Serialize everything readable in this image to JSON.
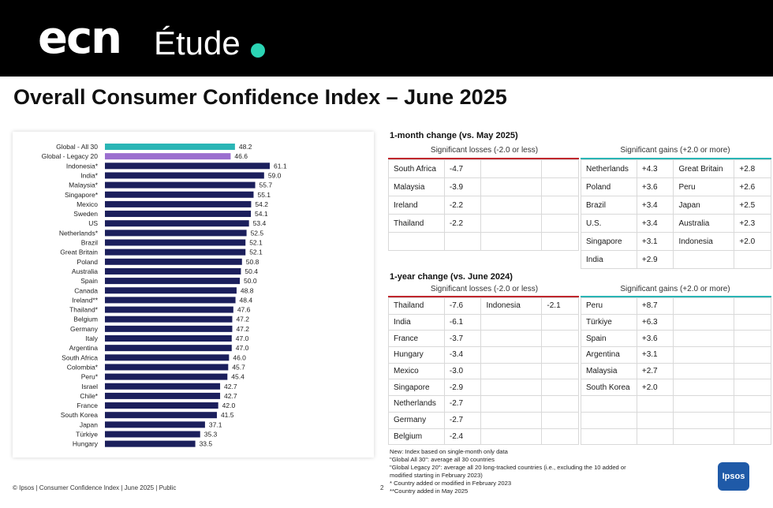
{
  "header": {
    "brand": "ecn",
    "subtitle": "Étude",
    "dot_color": "#2bd4b4"
  },
  "title": "Overall Consumer Confidence Index – June 2025",
  "chart_data": {
    "type": "bar",
    "orientation": "horizontal",
    "categories": [
      "Global - All 30",
      "Global - Legacy 20",
      "Indonesia*",
      "India*",
      "Malaysia*",
      "Singapore*",
      "Mexico",
      "Sweden",
      "US",
      "Netherlands*",
      "Brazil",
      "Great Britain",
      "Poland",
      "Australia",
      "Spain",
      "Canada",
      "Ireland**",
      "Thailand*",
      "Belgium",
      "Germany",
      "Italy",
      "Argentina",
      "South Africa",
      "Colombia*",
      "Peru*",
      "Israel",
      "Chile*",
      "France",
      "South Korea",
      "Japan",
      "Türkiye",
      "Hungary"
    ],
    "values": [
      48.2,
      46.6,
      61.1,
      59.0,
      55.7,
      55.1,
      54.2,
      54.1,
      53.4,
      52.5,
      52.1,
      52.1,
      50.8,
      50.4,
      50.0,
      48.8,
      48.4,
      47.6,
      47.2,
      47.2,
      47.0,
      47.0,
      46.0,
      45.7,
      45.4,
      42.7,
      42.7,
      42.0,
      41.5,
      37.1,
      35.3,
      33.5
    ],
    "value_labels": [
      "48.2",
      "46.6",
      "61.1",
      "59.0",
      "55.7",
      "55.1",
      "54.2",
      "54.1",
      "53.4",
      "52.5",
      "52.1",
      "52.1",
      "50.8",
      "50.4",
      "50.0",
      "48.8",
      "48.4",
      "47.6",
      "47.2",
      "47.2",
      "47.0",
      "47.0",
      "46.0",
      "45.7",
      "45.4",
      "42.7",
      "42.7",
      "42.0",
      "41.5",
      "37.1",
      "35.3",
      "33.5"
    ],
    "colors": {
      "all30": "#2ab5b5",
      "legacy20": "#9b6fcf",
      "default": "#1b1f5c"
    },
    "xlim": [
      0,
      61.1
    ],
    "grid": false
  },
  "month_change": {
    "title": "1-month change (vs. May 2025)",
    "losses_label": "Significant losses (-2.0 or less)",
    "gains_label": "Significant gains (+2.0 or more)",
    "losses": [
      [
        "South Africa",
        "-4.7",
        "",
        ""
      ],
      [
        "Malaysia",
        "-3.9",
        "",
        ""
      ],
      [
        "Ireland",
        "-2.2",
        "",
        ""
      ],
      [
        "Thailand",
        "-2.2",
        "",
        ""
      ],
      [
        "",
        "",
        "",
        ""
      ]
    ],
    "gains": [
      [
        "Netherlands",
        "+4.3",
        "Great Britain",
        "+2.8"
      ],
      [
        "Poland",
        "+3.6",
        "Peru",
        "+2.6"
      ],
      [
        "Brazil",
        "+3.4",
        "Japan",
        "+2.5"
      ],
      [
        "U.S.",
        "+3.4",
        "Australia",
        "+2.3"
      ],
      [
        "Singapore",
        "+3.1",
        "Indonesia",
        "+2.0"
      ],
      [
        "India",
        "+2.9",
        "",
        ""
      ]
    ]
  },
  "year_change": {
    "title": "1-year change (vs. June 2024)",
    "losses_label": "Significant losses (-2.0 or less)",
    "gains_label": "Significant gains (+2.0 or more)",
    "losses": [
      [
        "Thailand",
        "-7.6",
        "Indonesia",
        "-2.1"
      ],
      [
        "India",
        "-6.1",
        "",
        ""
      ],
      [
        "France",
        "-3.7",
        "",
        ""
      ],
      [
        "Hungary",
        "-3.4",
        "",
        ""
      ],
      [
        "Mexico",
        "-3.0",
        "",
        ""
      ],
      [
        "Singapore",
        "-2.9",
        "",
        ""
      ],
      [
        "Netherlands",
        "-2.7",
        "",
        ""
      ],
      [
        "Germany",
        "-2.7",
        "",
        ""
      ],
      [
        "Belgium",
        "-2.4",
        "",
        ""
      ]
    ],
    "gains": [
      [
        "Peru",
        "+8.7",
        "",
        ""
      ],
      [
        "Türkiye",
        "+6.3",
        "",
        ""
      ],
      [
        "Spain",
        "+3.6",
        "",
        ""
      ],
      [
        "Argentina",
        "+3.1",
        "",
        ""
      ],
      [
        "Malaysia",
        "+2.7",
        "",
        ""
      ],
      [
        "South Korea",
        "+2.0",
        "",
        ""
      ],
      [
        "",
        "",
        "",
        ""
      ],
      [
        "",
        "",
        "",
        ""
      ],
      [
        "",
        "",
        "",
        ""
      ]
    ]
  },
  "colors": {
    "loss_rule": "#c0272d",
    "gain_rule": "#2ab5b5",
    "ipsos_blue": "#1f5aa8"
  },
  "notes": [
    "New: Index based on single-month only data",
    "\"Global All 30\": average all 30 countries",
    "\"Global Legacy 20\": average all 20 long-tracked countries (i.e., excluding the 10 added or modified starting in February 2023)",
    "* Country added or modified in February 2023",
    "**Country added in May 2025"
  ],
  "footer": {
    "left": "© Ipsos | Consumer Confidence Index | June 2025 | Public",
    "page": "2",
    "logo": "Ipsos"
  }
}
